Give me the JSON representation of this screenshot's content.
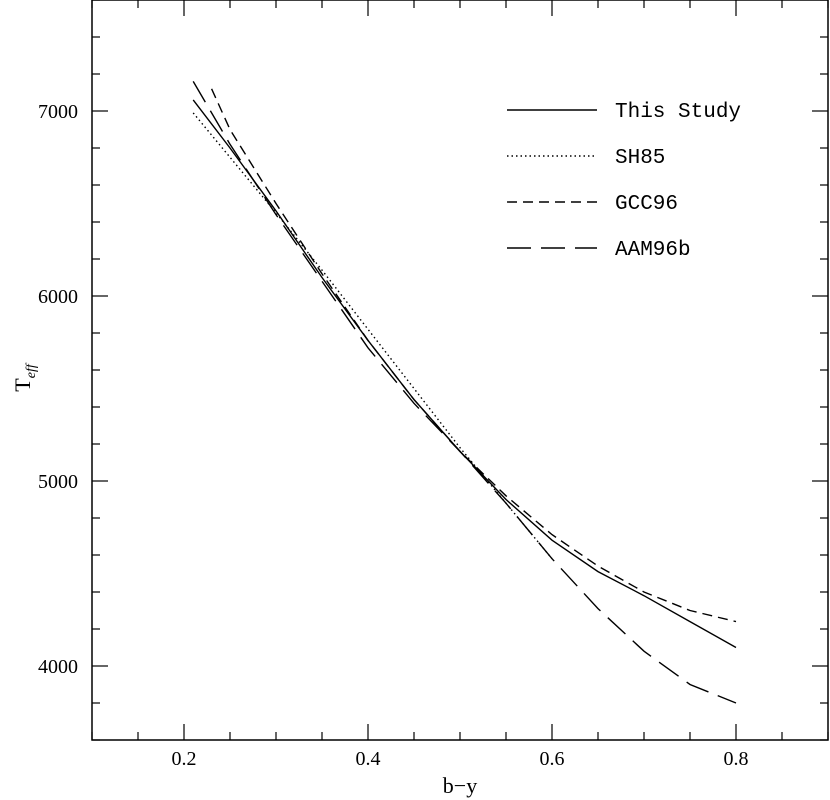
{
  "chart_data": {
    "type": "line",
    "xlabel": "b−y",
    "ylabel": "T",
    "ylabel_subscript": "eff",
    "xlim": [
      0.1,
      0.9
    ],
    "ylim": [
      3600,
      7600
    ],
    "x_ticks": [
      0.2,
      0.4,
      0.6,
      0.8
    ],
    "x_tick_labels": [
      "0.2",
      "0.4",
      "0.6",
      "0.8"
    ],
    "y_ticks": [
      4000,
      5000,
      6000,
      7000
    ],
    "y_tick_labels": [
      "4000",
      "5000",
      "6000",
      "7000"
    ],
    "grid": false,
    "legend_position": "top-right",
    "series": [
      {
        "name": "This Study",
        "dash": "solid",
        "x": [
          0.21,
          0.25,
          0.3,
          0.35,
          0.4,
          0.45,
          0.5,
          0.55,
          0.6,
          0.65,
          0.7,
          0.75,
          0.8
        ],
        "y": [
          7060,
          6800,
          6460,
          6100,
          5760,
          5440,
          5160,
          4900,
          4680,
          4510,
          4380,
          4240,
          4100
        ]
      },
      {
        "name": "SH85",
        "dash": "dotted",
        "x": [
          0.21,
          0.25,
          0.3,
          0.35,
          0.4,
          0.45,
          0.5,
          0.55,
          0.6
        ],
        "y": [
          6990,
          6750,
          6450,
          6140,
          5820,
          5500,
          5180,
          4880,
          4580
        ]
      },
      {
        "name": "GCC96",
        "dash": "dashed",
        "x": [
          0.23,
          0.25,
          0.3,
          0.35,
          0.4,
          0.45,
          0.5,
          0.55,
          0.6,
          0.65,
          0.7,
          0.75,
          0.8
        ],
        "y": [
          7120,
          6900,
          6500,
          6120,
          5760,
          5440,
          5160,
          4920,
          4710,
          4540,
          4400,
          4300,
          4240
        ]
      },
      {
        "name": "AAM96b",
        "dash": "long-dashed",
        "x": [
          0.21,
          0.25,
          0.3,
          0.35,
          0.4,
          0.45,
          0.5,
          0.55,
          0.6,
          0.65,
          0.7,
          0.75,
          0.8
        ],
        "y": [
          7160,
          6820,
          6440,
          6080,
          5720,
          5420,
          5160,
          4880,
          4580,
          4310,
          4080,
          3900,
          3800
        ]
      }
    ]
  }
}
